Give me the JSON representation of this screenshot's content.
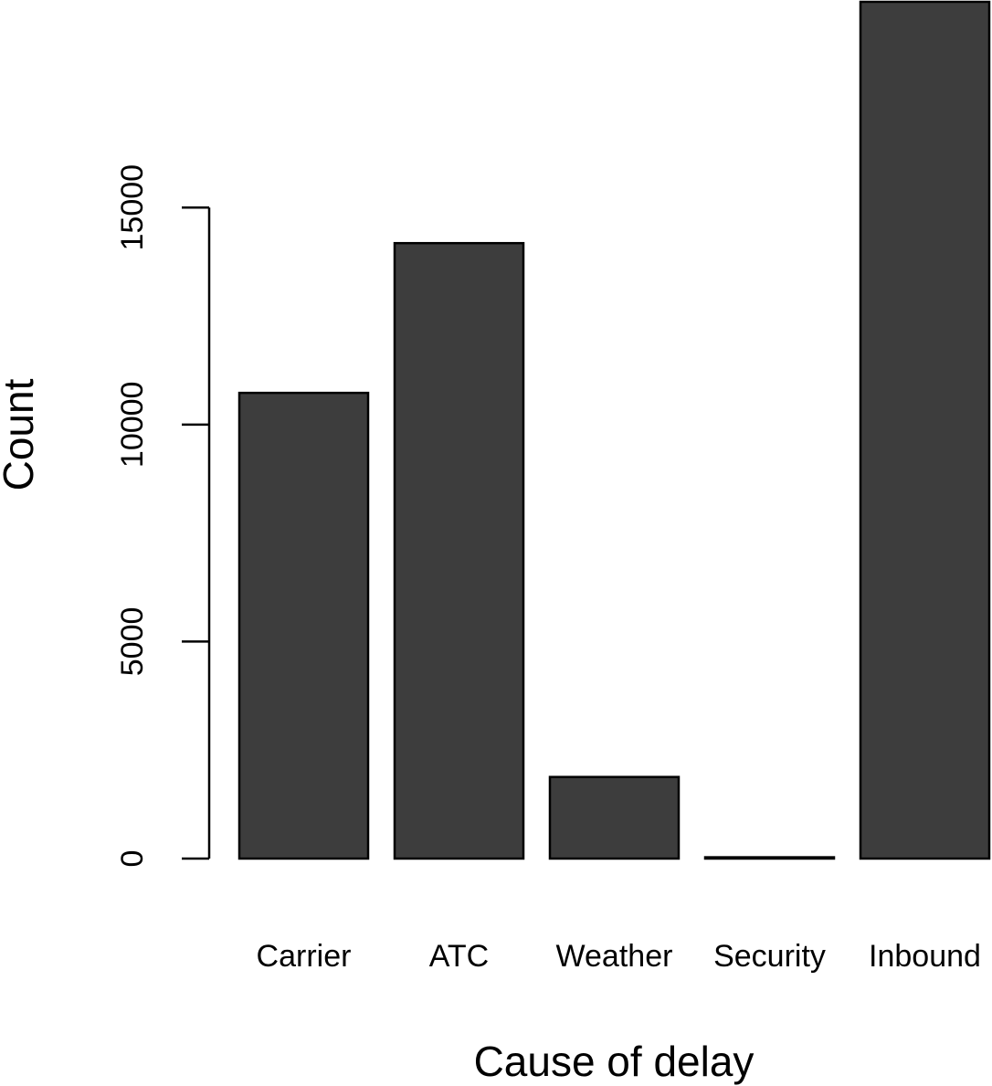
{
  "chart_data": {
    "type": "bar",
    "categories": [
      "Carrier",
      "ATC",
      "Weather",
      "Security",
      "Inbound"
    ],
    "values": [
      10730,
      14180,
      1880,
      30,
      19740
    ],
    "title": "",
    "xlabel": "Cause of delay",
    "ylabel": "Count",
    "ylim": [
      0,
      19740
    ],
    "yticks": [
      0,
      5000,
      10000,
      15000
    ],
    "ytick_labels": [
      "0",
      "5000",
      "10000",
      "15000"
    ],
    "grid": false,
    "legend": "none",
    "bar_color": "#3d3d3d",
    "bar_edge_color": "#000000"
  }
}
